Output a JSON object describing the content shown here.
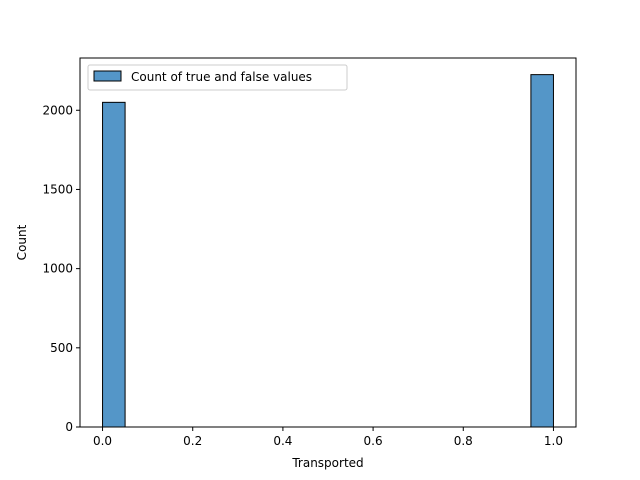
{
  "chart_data": {
    "type": "bar",
    "xlabel": "Transported",
    "ylabel": "Count",
    "xlim": [
      -0.05,
      1.05
    ],
    "ylim": [
      0,
      2330
    ],
    "x_ticks": [
      0.0,
      0.2,
      0.4,
      0.6,
      0.8,
      1.0
    ],
    "x_tick_labels": [
      "0.0",
      "0.2",
      "0.4",
      "0.6",
      "0.8",
      "1.0"
    ],
    "y_ticks": [
      0,
      500,
      1000,
      1500,
      2000
    ],
    "y_tick_labels": [
      "0",
      "500",
      "1000",
      "1500",
      "2000"
    ],
    "bin_width": 0.05,
    "bars": [
      {
        "x_start": 0.0,
        "x_end": 0.05,
        "value": 2050
      },
      {
        "x_start": 0.95,
        "x_end": 1.0,
        "value": 2225
      }
    ],
    "legend": {
      "position": "top-left",
      "entries": [
        {
          "label": "Count of true and false values"
        }
      ]
    },
    "bar_color": "#5496c8",
    "bar_edge_color": "#000000",
    "grid": false
  }
}
